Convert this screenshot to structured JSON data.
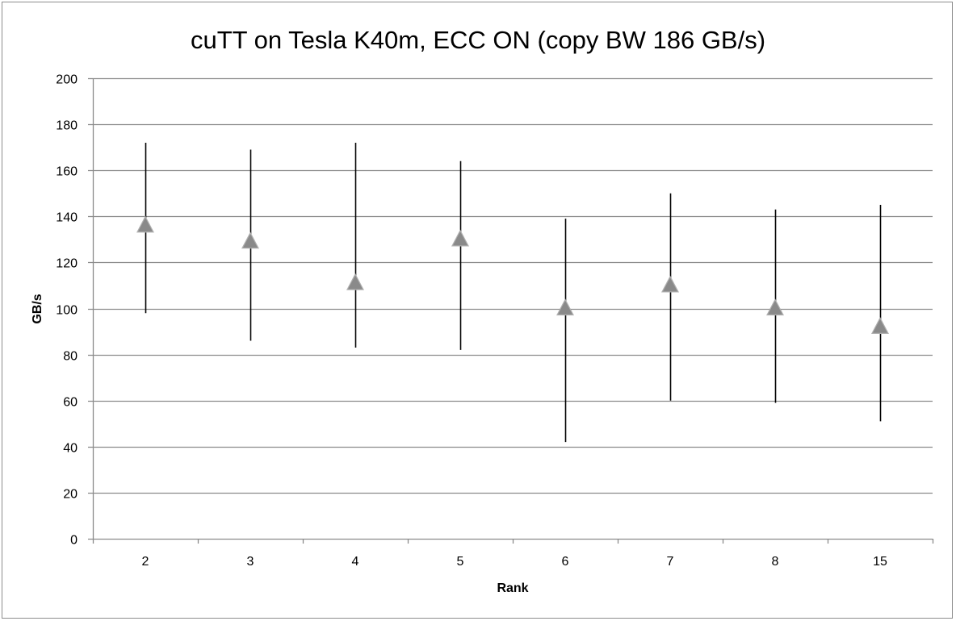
{
  "chart_data": {
    "type": "scatter",
    "title": "cuTT on Tesla K40m, ECC ON (copy BW 186 GB/s)",
    "xlabel": "Rank",
    "ylabel": "GB/s",
    "ylim": [
      0,
      200
    ],
    "y_ticks": [
      0,
      20,
      40,
      60,
      80,
      100,
      120,
      140,
      160,
      180,
      200
    ],
    "y_tick_labels": [
      "0",
      "20",
      "40",
      "60",
      "80",
      "100",
      "120",
      "140",
      "160",
      "180",
      "200"
    ],
    "categories": [
      "2",
      "3",
      "4",
      "5",
      "6",
      "7",
      "8",
      "15"
    ],
    "grid": true,
    "legend": "none",
    "series": [
      {
        "marker": "triangle",
        "values": [
          136,
          129,
          111,
          130,
          100,
          110,
          100,
          92
        ],
        "high": [
          172,
          169,
          172,
          164,
          139,
          150,
          143,
          145
        ],
        "low": [
          98,
          86,
          83,
          82,
          42,
          60,
          59,
          51
        ]
      }
    ],
    "colors": {
      "marker_fill": "#8a8a8a",
      "marker_stroke": "#b0b0b0",
      "error_bar": "#000000",
      "gridline": "#8c8c8c",
      "axis": "#8c8c8c"
    }
  }
}
